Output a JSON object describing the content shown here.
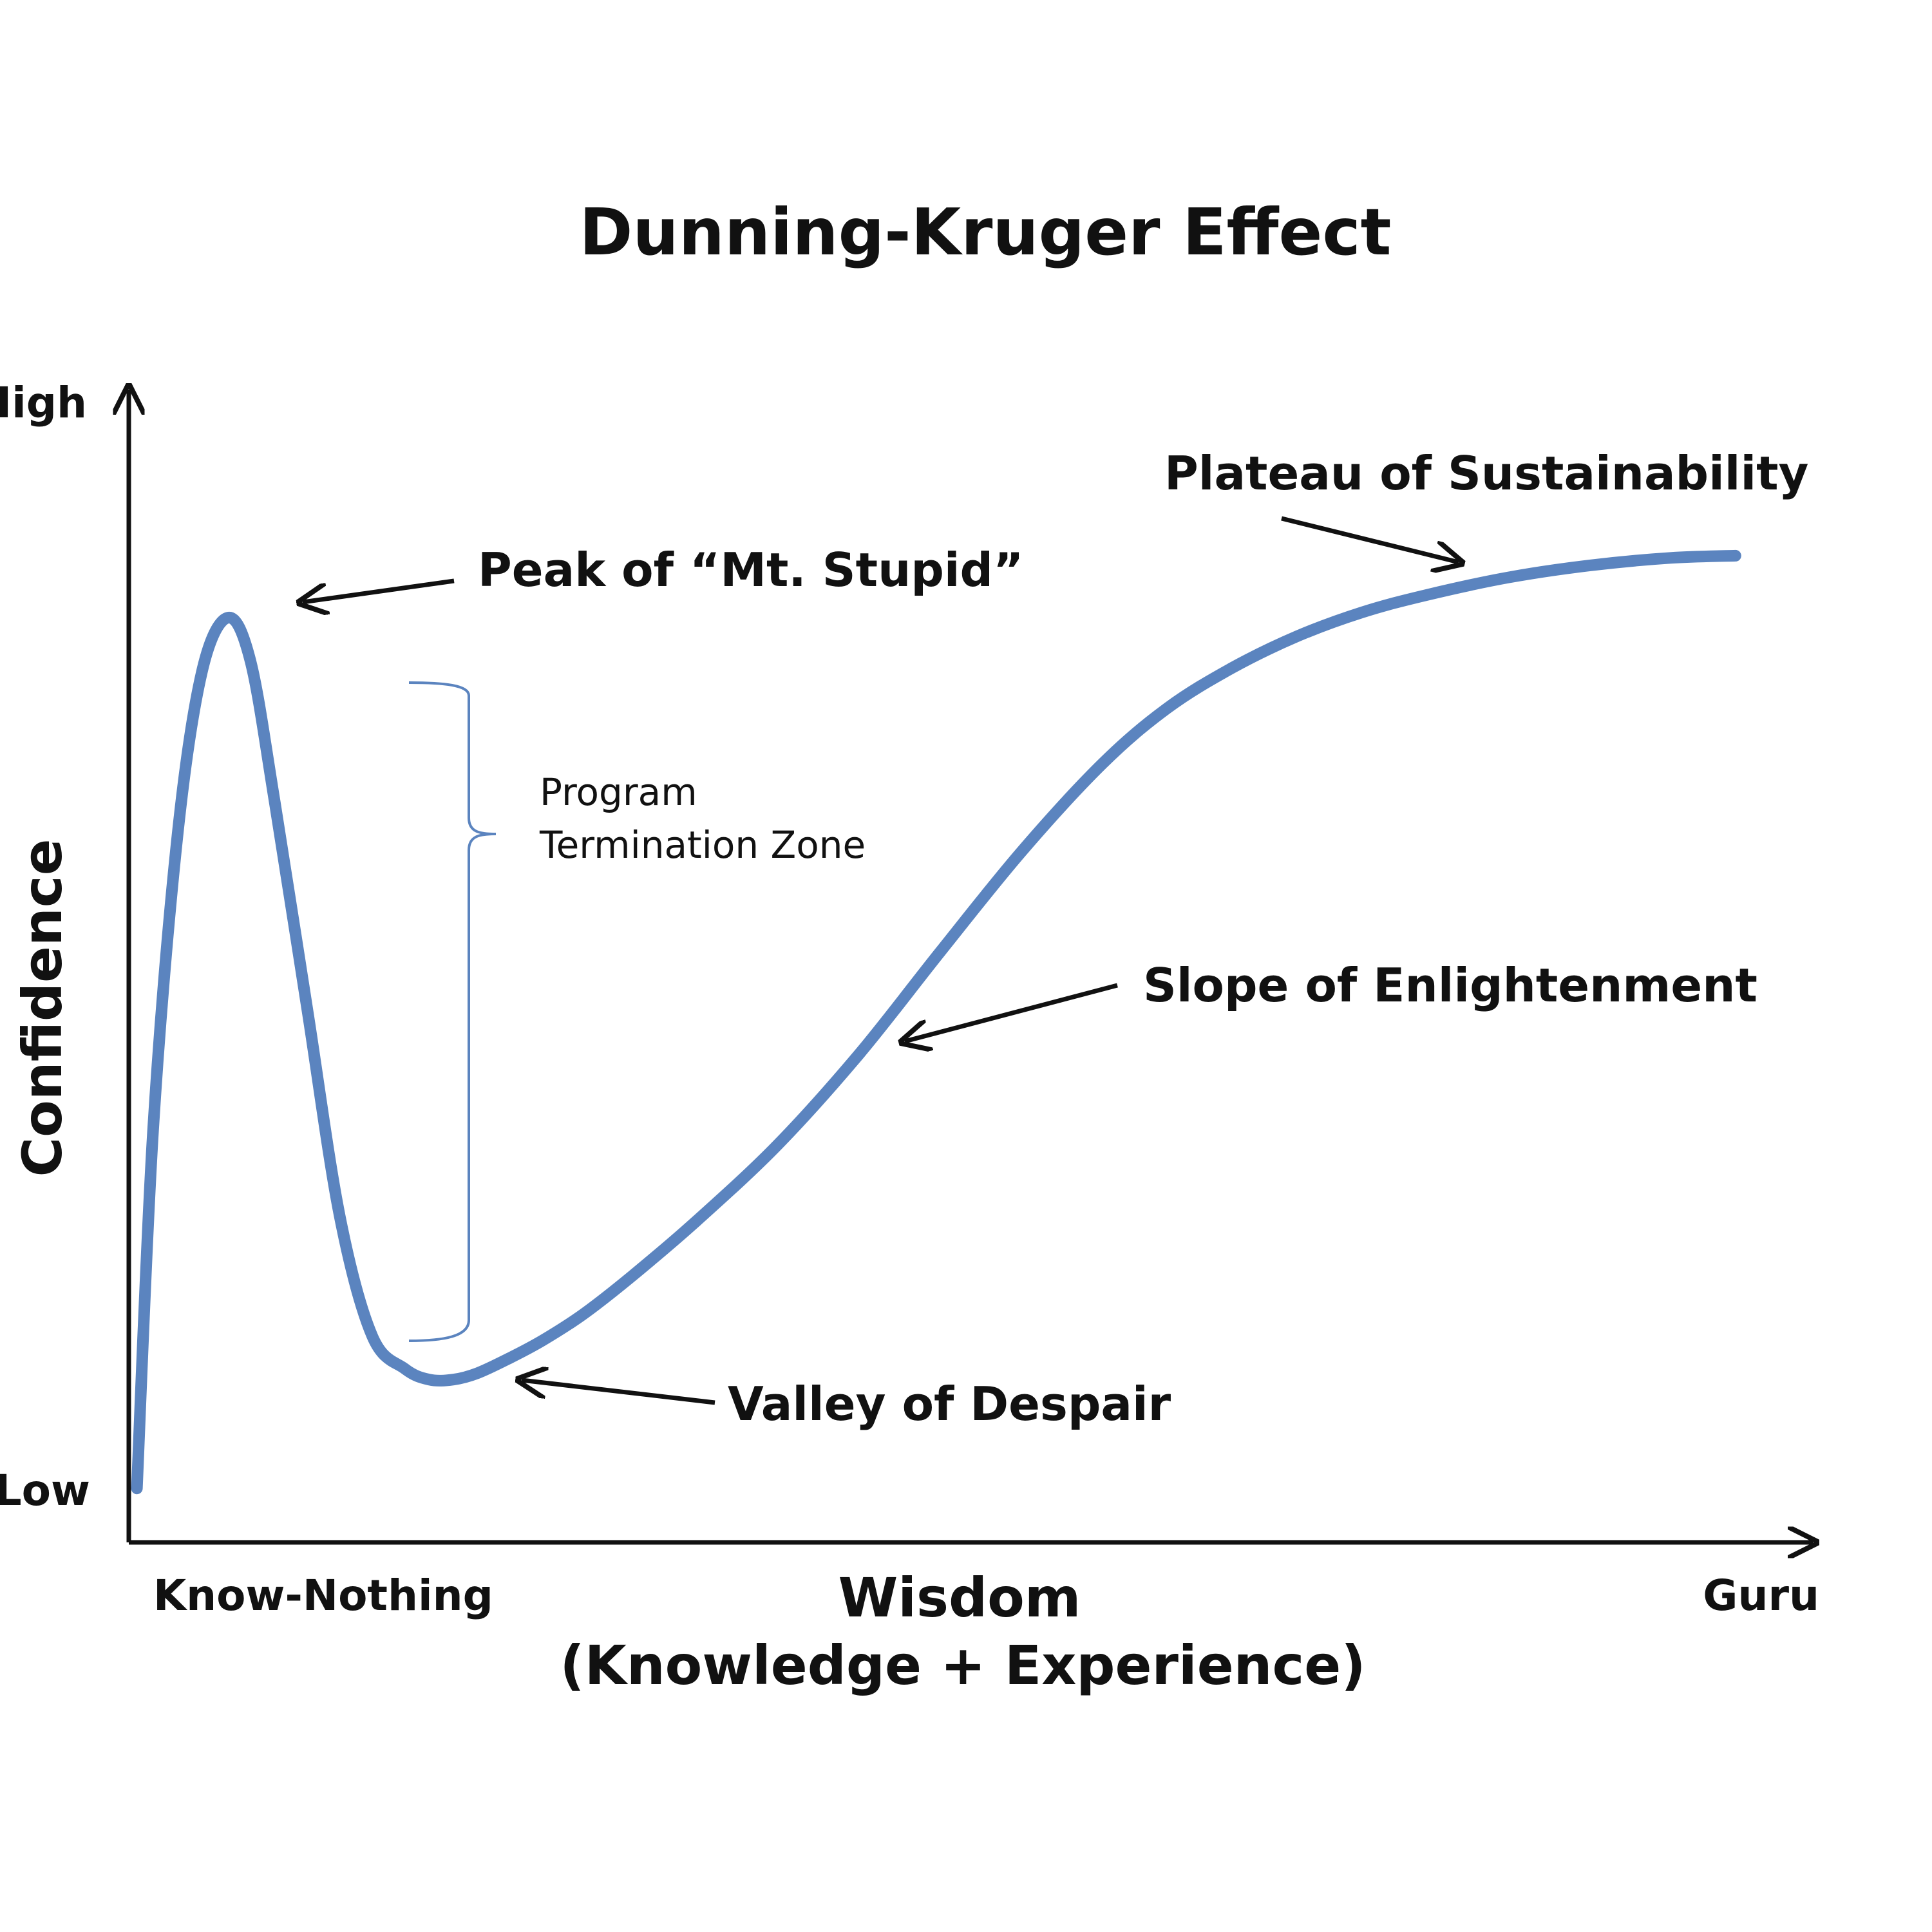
{
  "chart_data": {
    "type": "line",
    "title": "Dunning-Kruger Effect",
    "xlabel": "Wisdom",
    "xlabel_sub": "(Knowledge + Experience)",
    "ylabel": "Confidence",
    "x_tick_labels": [
      "Know-Nothing",
      "Guru"
    ],
    "y_tick_labels": [
      "Low",
      "High"
    ],
    "xlim": [
      0,
      100
    ],
    "ylim": [
      0,
      100
    ],
    "grid": false,
    "curve_color": "#5b84bf",
    "series": [
      {
        "x": [
          0.5,
          1.5,
          3,
          4.5,
          6.1,
          7.5,
          9,
          11,
          13,
          15,
          17,
          18.5,
          20,
          21.5,
          23.5,
          25.5,
          28,
          31,
          35,
          40,
          45,
          50,
          55,
          60,
          64,
          68,
          72,
          76,
          80,
          85,
          90,
          95,
          99
        ],
        "y": [
          2,
          35,
          62,
          77,
          82,
          78,
          65,
          46,
          27,
          16,
          13,
          12,
          12,
          12.6,
          14,
          15.6,
          18,
          21.5,
          26.6,
          33.6,
          41.9,
          51.3,
          60.5,
          68.6,
          73.7,
          77.4,
          80.3,
          82.5,
          84.1,
          85.7,
          86.8,
          87.5,
          87.7
        ]
      }
    ],
    "annotations": [
      {
        "label": "Peak of “Mt. Stupid”",
        "x": 6.1,
        "y": 82
      },
      {
        "label": "Valley of Despair",
        "x": 18.5,
        "y": 12
      },
      {
        "label": "Slope of Enlightenment",
        "x": 47,
        "y": 45.5
      },
      {
        "label": "Plateau of Sustainability",
        "x": 81,
        "y": 84.5
      }
    ],
    "bracket": {
      "label_lines": [
        "Program",
        "Termination Zone"
      ],
      "y_from": 16,
      "y_to": 73
    }
  }
}
